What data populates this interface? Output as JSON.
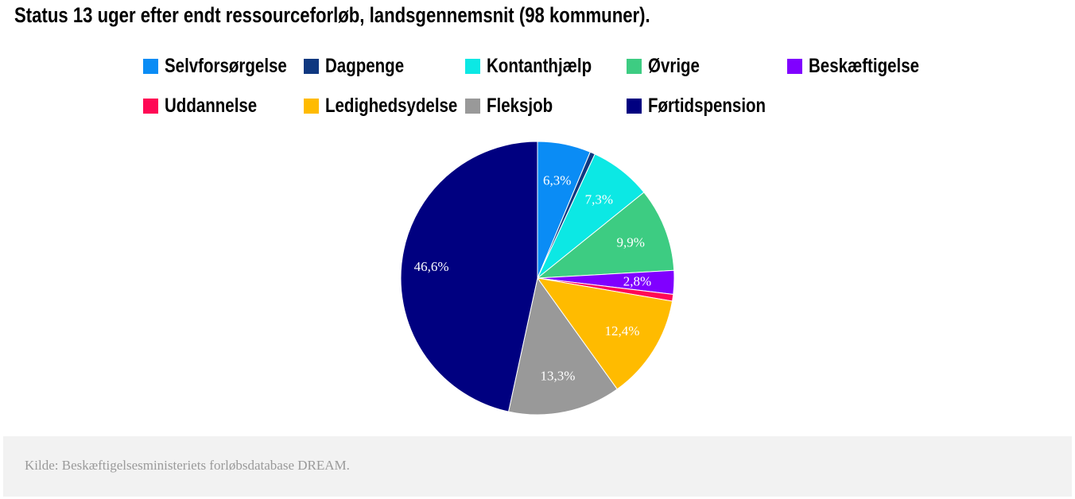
{
  "chart_data": {
    "type": "pie",
    "title": "Status 13 uger efter endt ressourceforløb, landsgennemsnit (98 kommuner).",
    "categories": [
      "Selvforsørgelse",
      "Dagpenge",
      "Kontanthjælp",
      "Øvrige",
      "Beskæftigelse",
      "Uddannelse",
      "Ledighedsydelse",
      "Fleksjob",
      "Førtidspension"
    ],
    "values": [
      6.3,
      0.6,
      7.3,
      9.9,
      2.8,
      0.8,
      12.4,
      13.3,
      46.6
    ],
    "labels": [
      "6,3%",
      "",
      "7,3%",
      "9,9%",
      "2,8%",
      "",
      "12,4%",
      "13,3%",
      "46,6%"
    ],
    "colors": [
      "#0a8cf5",
      "#0f3880",
      "#0ce8e4",
      "#3dcc82",
      "#8000ff",
      "#ff0855",
      "#ffbb00",
      "#999999",
      "#000080"
    ],
    "legend_position": "top"
  },
  "footer": {
    "source": "Kilde: Beskæftigelsesministeriets forløbsdatabase DREAM."
  }
}
